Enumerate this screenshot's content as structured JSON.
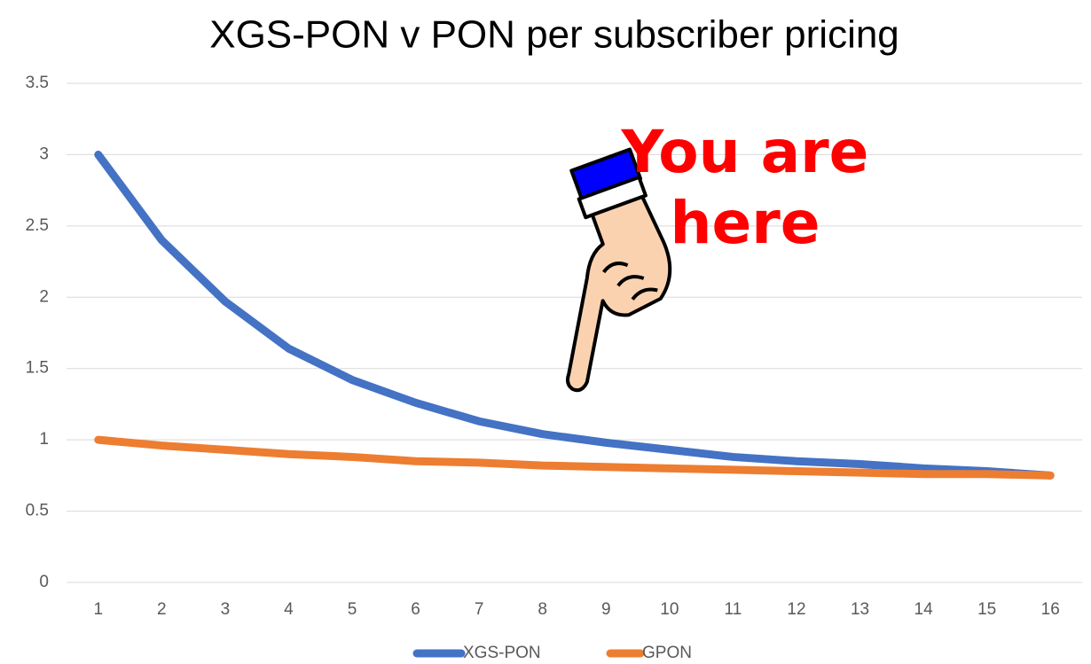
{
  "chart_data": {
    "type": "line",
    "title": "XGS-PON v PON per subscriber pricing",
    "annotation": "You are here",
    "categories": [
      "1",
      "2",
      "3",
      "4",
      "5",
      "6",
      "7",
      "8",
      "9",
      "10",
      "11",
      "12",
      "13",
      "14",
      "15",
      "16"
    ],
    "series": [
      {
        "name": "XGS-PON",
        "color": "#4472c4",
        "values": [
          3.0,
          2.4,
          1.97,
          1.64,
          1.42,
          1.26,
          1.13,
          1.04,
          0.98,
          0.93,
          0.88,
          0.85,
          0.83,
          0.8,
          0.78,
          0.75
        ]
      },
      {
        "name": "GPON",
        "color": "#ed7d31",
        "values": [
          1.0,
          0.96,
          0.93,
          0.9,
          0.88,
          0.85,
          0.84,
          0.82,
          0.81,
          0.8,
          0.79,
          0.78,
          0.77,
          0.76,
          0.76,
          0.75
        ]
      }
    ],
    "ylim": [
      0,
      3.5
    ],
    "yticks": [
      0,
      0.5,
      1,
      1.5,
      2,
      2.5,
      3,
      3.5
    ],
    "grid": true,
    "legend": "bottom"
  }
}
